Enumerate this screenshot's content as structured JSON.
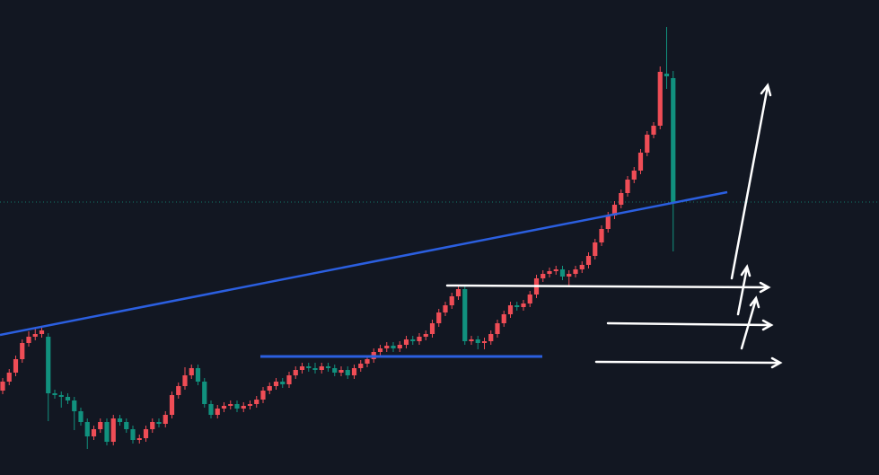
{
  "chart_data": {
    "type": "candlestick",
    "ylim": [
      0,
      529
    ],
    "up_color": "#ef4d56",
    "down_color": "#11917e",
    "open": [
      94,
      104,
      114,
      129,
      147,
      154,
      157,
      154,
      91,
      89,
      87,
      83,
      71,
      59,
      43,
      51,
      59,
      37,
      63,
      59,
      51,
      39,
      41,
      51,
      59,
      57,
      67,
      89,
      99,
      111,
      119,
      104,
      79,
      67,
      74,
      77,
      79,
      74,
      77,
      79,
      84,
      94,
      99,
      104,
      101,
      111,
      117,
      121,
      119,
      117,
      121,
      119,
      114,
      117,
      111,
      119,
      124,
      129,
      137,
      141,
      144,
      141,
      145,
      151,
      149,
      154,
      157,
      169,
      181,
      189,
      199,
      207,
      149,
      151,
      147,
      149,
      157,
      169,
      179,
      189,
      187,
      191,
      201,
      219,
      224,
      227,
      229,
      221,
      224,
      229,
      234,
      244,
      259,
      274,
      289,
      301,
      314,
      329,
      339,
      359,
      379,
      389,
      447,
      442
    ],
    "high": [
      108,
      118,
      133,
      151,
      160,
      163,
      165,
      158,
      95,
      93,
      91,
      87,
      75,
      63,
      55,
      63,
      63,
      67,
      67,
      63,
      55,
      45,
      55,
      63,
      63,
      71,
      93,
      103,
      120,
      123,
      123,
      108,
      83,
      78,
      81,
      83,
      83,
      81,
      83,
      88,
      98,
      103,
      108,
      108,
      115,
      121,
      125,
      125,
      125,
      125,
      125,
      123,
      121,
      121,
      123,
      128,
      133,
      141,
      145,
      148,
      148,
      149,
      155,
      155,
      158,
      161,
      173,
      185,
      193,
      203,
      212,
      212,
      155,
      155,
      153,
      161,
      173,
      183,
      193,
      193,
      195,
      205,
      223,
      228,
      231,
      233,
      233,
      228,
      233,
      238,
      248,
      263,
      278,
      293,
      305,
      318,
      333,
      343,
      363,
      383,
      393,
      455,
      499,
      450
    ],
    "low": [
      90,
      100,
      110,
      125,
      143,
      150,
      153,
      60,
      85,
      75,
      79,
      50,
      55,
      29,
      39,
      47,
      33,
      33,
      55,
      47,
      35,
      35,
      37,
      47,
      53,
      53,
      63,
      85,
      95,
      107,
      100,
      75,
      63,
      63,
      70,
      73,
      70,
      70,
      73,
      75,
      80,
      90,
      95,
      97,
      97,
      107,
      113,
      115,
      113,
      113,
      115,
      110,
      110,
      107,
      107,
      115,
      120,
      125,
      133,
      137,
      137,
      137,
      141,
      145,
      145,
      150,
      153,
      165,
      177,
      185,
      195,
      145,
      145,
      140,
      140,
      145,
      153,
      165,
      175,
      183,
      183,
      187,
      197,
      215,
      220,
      223,
      217,
      210,
      220,
      225,
      230,
      240,
      255,
      270,
      285,
      297,
      310,
      325,
      335,
      355,
      375,
      385,
      430,
      249
    ],
    "close": [
      104,
      114,
      129,
      147,
      154,
      157,
      161,
      91,
      89,
      87,
      83,
      71,
      59,
      43,
      51,
      59,
      37,
      63,
      59,
      51,
      39,
      41,
      51,
      59,
      57,
      67,
      89,
      99,
      111,
      119,
      104,
      79,
      67,
      74,
      77,
      79,
      74,
      77,
      79,
      84,
      94,
      99,
      104,
      101,
      111,
      117,
      121,
      119,
      117,
      121,
      119,
      114,
      117,
      111,
      119,
      124,
      129,
      137,
      141,
      144,
      141,
      145,
      151,
      149,
      154,
      157,
      169,
      181,
      189,
      199,
      207,
      149,
      151,
      147,
      149,
      157,
      169,
      179,
      189,
      187,
      191,
      201,
      219,
      224,
      227,
      229,
      221,
      224,
      229,
      234,
      244,
      259,
      274,
      289,
      301,
      314,
      329,
      339,
      359,
      379,
      389,
      449,
      444,
      304
    ]
  }
}
